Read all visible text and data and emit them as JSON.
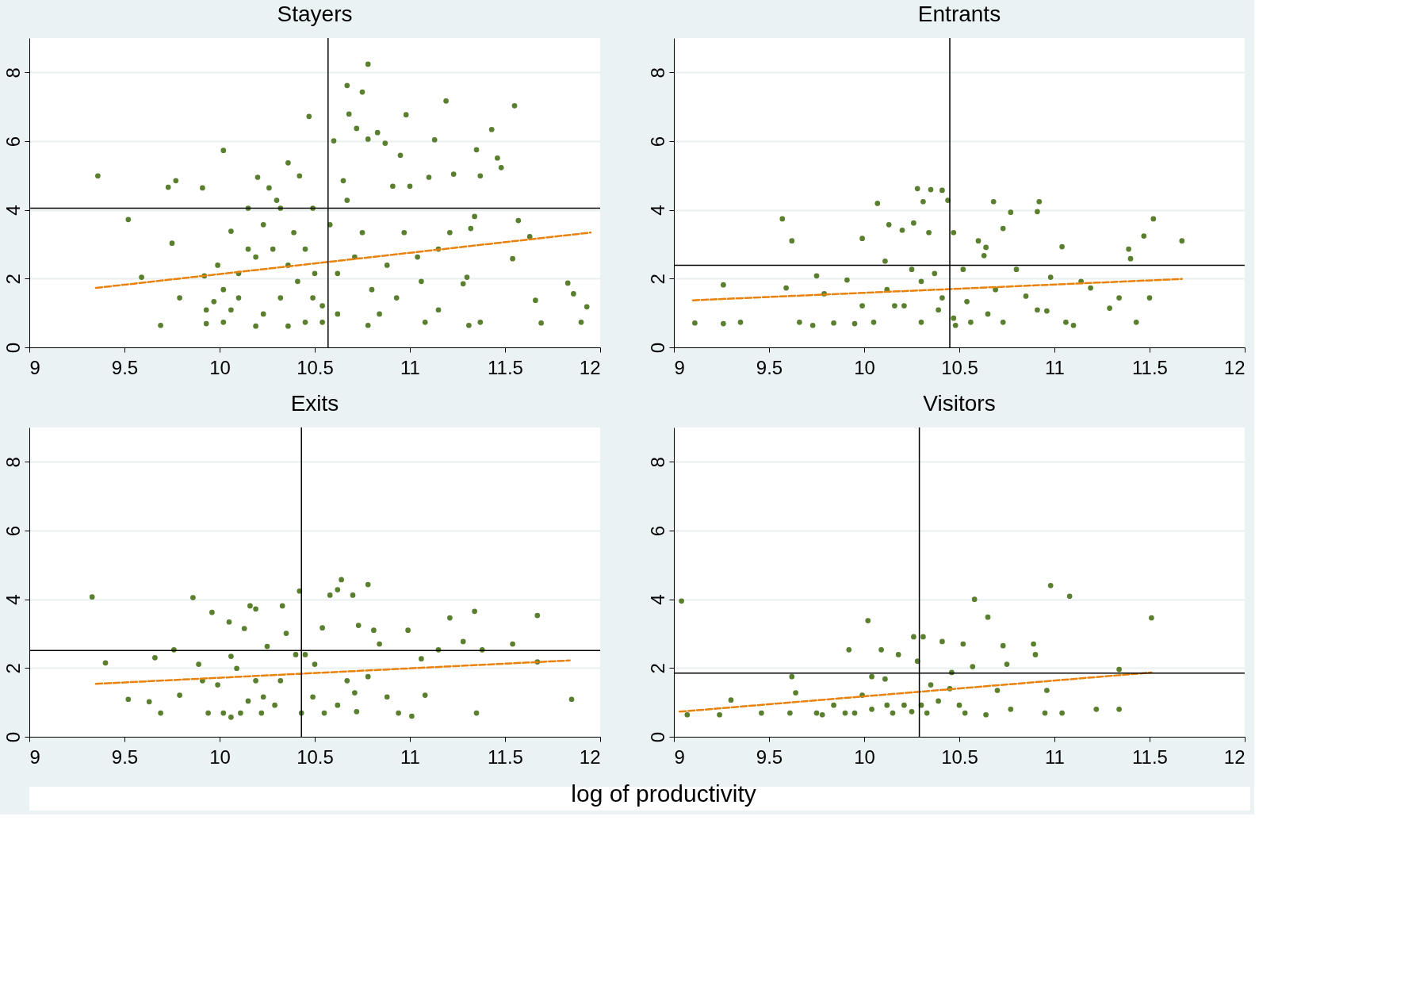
{
  "chart_data": [
    {
      "type": "scatter",
      "title": "Stayers",
      "xlim": [
        9,
        12
      ],
      "ylim": [
        0,
        9
      ],
      "xticks": [
        9,
        9.5,
        10,
        10.5,
        11,
        11.5,
        12
      ],
      "yticks": [
        0,
        2,
        4,
        6,
        8
      ],
      "grid": "y",
      "series": [
        {
          "marker": "circle",
          "color": "#5a7f2e",
          "x": [
            9.36,
            9.52,
            9.59,
            9.69,
            9.73,
            9.77,
            9.75,
            9.79,
            9.91,
            10.02,
            9.92,
            9.93,
            9.99,
            10.02,
            10.06,
            10.1,
            10.15,
            10.2,
            10.23,
            10.26,
            10.3,
            10.36,
            10.39,
            10.42,
            10.47,
            10.45,
            10.49,
            10.5,
            10.54,
            10.58,
            10.6,
            10.65,
            10.67,
            10.68,
            10.72,
            10.75,
            10.78,
            10.78,
            10.83,
            10.87,
            10.78,
            10.91,
            10.95,
            10.98,
            11.0,
            11.04,
            11.1,
            11.13,
            11.19,
            11.23,
            11.28,
            11.3,
            11.31,
            11.34,
            11.35,
            11.37,
            11.43,
            11.46,
            11.48,
            11.55,
            11.54,
            11.57,
            11.63,
            11.66,
            11.69,
            11.83,
            11.86,
            11.9,
            11.93,
            11.37,
            11.15,
            11.08,
            10.02,
            10.1,
            10.19,
            10.28,
            10.36,
            10.45,
            10.32,
            10.41,
            10.49,
            10.62,
            10.71,
            10.8,
            10.88,
            10.97,
            10.75,
            10.62,
            10.36,
            10.19,
            10.06,
            10.23,
            10.15,
            10.54,
            10.84,
            10.93,
            11.06,
            11.15,
            11.21,
            11.32,
            10.32,
            10.67,
            9.97,
            9.93
          ],
          "values": [
            4.99,
            3.72,
            2.04,
            0.64,
            4.66,
            4.85,
            3.03,
            1.44,
            4.64,
            5.73,
            2.08,
            0.69,
            2.39,
            0.73,
            3.38,
            1.44,
            2.86,
            4.95,
            0.97,
            4.64,
            4.28,
            5.37,
            3.34,
            4.99,
            6.72,
            0.73,
            4.05,
            2.15,
            1.21,
            3.57,
            6.01,
            4.85,
            7.62,
            6.79,
            6.37,
            7.43,
            8.24,
            6.06,
            6.25,
            5.94,
            0.64,
            4.69,
            5.59,
            6.77,
            4.69,
            2.63,
            4.95,
            6.04,
            7.17,
            5.04,
            1.85,
            2.04,
            0.64,
            3.81,
            5.75,
            4.99,
            6.34,
            5.51,
            5.23,
            7.03,
            2.58,
            3.69,
            3.22,
            1.37,
            0.71,
            1.87,
            1.56,
            0.73,
            1.18,
            0.73,
            1.09,
            0.73,
            1.68,
            2.15,
            2.63,
            2.86,
            2.39,
            2.86,
            1.44,
            1.92,
            1.44,
            2.15,
            2.63,
            1.68,
            2.39,
            3.34,
            3.34,
            0.97,
            0.62,
            0.62,
            1.09,
            3.57,
            4.05,
            0.73,
            0.97,
            1.44,
            1.92,
            2.86,
            3.34,
            3.46,
            4.05,
            4.28,
            1.33,
            1.09
          ]
        },
        {
          "type": "line",
          "color": "#e8820c",
          "line_style": "dashed",
          "x": [
            9.35,
            11.95
          ],
          "values": [
            1.73,
            3.34
          ]
        }
      ],
      "ref_lines": [
        {
          "axis": "y",
          "value": 4.05,
          "color": "#000000"
        },
        {
          "axis": "x",
          "value": 10.57,
          "color": "#000000"
        }
      ]
    },
    {
      "type": "scatter",
      "title": "Entrants",
      "xlim": [
        9,
        12
      ],
      "ylim": [
        0,
        9
      ],
      "xticks": [
        9,
        9.5,
        10,
        10.5,
        11,
        11.5,
        12
      ],
      "yticks": [
        0,
        2,
        4,
        6,
        8
      ],
      "grid": "y",
      "series": [
        {
          "marker": "circle",
          "color": "#5a7f2e",
          "x": [
            9.11,
            9.26,
            9.26,
            9.35,
            9.57,
            9.62,
            9.59,
            9.66,
            9.73,
            9.75,
            9.79,
            9.84,
            9.91,
            9.95,
            9.99,
            9.99,
            10.05,
            10.07,
            10.11,
            10.13,
            10.16,
            10.2,
            10.25,
            10.26,
            10.28,
            10.3,
            10.31,
            10.34,
            10.35,
            10.37,
            10.41,
            10.41,
            10.44,
            10.47,
            10.48,
            10.52,
            10.56,
            10.6,
            10.63,
            10.64,
            10.68,
            10.69,
            10.73,
            10.77,
            10.8,
            10.85,
            10.91,
            10.92,
            10.91,
            10.98,
            10.96,
            11.04,
            11.06,
            11.1,
            11.14,
            11.19,
            11.29,
            11.34,
            11.39,
            11.4,
            11.43,
            11.47,
            11.52,
            11.5,
            11.67,
            10.12,
            10.21,
            10.3,
            10.39,
            10.47,
            10.54,
            10.65,
            10.73
          ],
          "values": [
            0.71,
            1.82,
            0.69,
            0.73,
            3.74,
            3.1,
            1.73,
            0.73,
            0.64,
            2.08,
            1.56,
            0.71,
            1.96,
            0.69,
            3.17,
            1.21,
            0.73,
            4.19,
            2.51,
            3.57,
            1.21,
            3.41,
            2.27,
            3.62,
            4.62,
            0.73,
            4.24,
            3.34,
            4.59,
            2.15,
            4.57,
            1.44,
            4.28,
            3.34,
            0.64,
            2.27,
            0.73,
            3.1,
            2.67,
            2.91,
            4.24,
            1.68,
            3.46,
            3.93,
            2.27,
            1.49,
            3.95,
            4.24,
            1.09,
            2.04,
            1.06,
            2.93,
            0.73,
            0.64,
            1.92,
            1.73,
            1.14,
            1.44,
            2.86,
            2.58,
            0.73,
            3.24,
            3.74,
            1.44,
            3.1,
            1.68,
            1.21,
            1.92,
            1.09,
            0.85,
            1.33,
            0.97,
            0.73
          ]
        },
        {
          "type": "line",
          "color": "#e8820c",
          "line_style": "dashed",
          "x": [
            9.1,
            11.67
          ],
          "values": [
            1.37,
            1.99
          ]
        }
      ],
      "ref_lines": [
        {
          "axis": "y",
          "value": 2.39,
          "color": "#000000"
        },
        {
          "axis": "x",
          "value": 10.45,
          "color": "#000000"
        }
      ]
    },
    {
      "type": "scatter",
      "title": "Exits",
      "xlabel": "log of productivity",
      "xlim": [
        9,
        12
      ],
      "ylim": [
        0,
        9
      ],
      "xticks": [
        9,
        9.5,
        10,
        10.5,
        11,
        11.5,
        12
      ],
      "yticks": [
        0,
        2,
        4,
        6,
        8
      ],
      "grid": "y",
      "series": [
        {
          "marker": "circle",
          "color": "#5a7f2e",
          "x": [
            9.33,
            9.4,
            9.52,
            9.63,
            9.66,
            9.69,
            9.76,
            9.79,
            9.86,
            9.89,
            9.91,
            9.94,
            9.96,
            9.99,
            10.02,
            10.05,
            10.06,
            10.09,
            10.11,
            10.13,
            10.16,
            10.19,
            10.19,
            10.22,
            10.25,
            10.29,
            10.33,
            10.35,
            10.4,
            10.42,
            10.43,
            10.45,
            10.5,
            10.54,
            10.55,
            10.58,
            10.62,
            10.64,
            10.67,
            10.7,
            10.72,
            10.73,
            10.78,
            10.78,
            10.81,
            10.84,
            10.88,
            10.94,
            10.99,
            11.01,
            11.06,
            11.08,
            11.15,
            11.21,
            11.28,
            11.34,
            11.35,
            11.38,
            11.54,
            11.67,
            11.85,
            11.67,
            10.23,
            10.32,
            10.49,
            10.62,
            10.71,
            10.15,
            10.06
          ],
          "values": [
            4.07,
            2.15,
            1.09,
            1.02,
            2.3,
            0.69,
            2.53,
            1.21,
            4.05,
            2.11,
            1.63,
            0.69,
            3.62,
            1.51,
            0.69,
            3.34,
            2.34,
            1.99,
            0.69,
            3.15,
            3.81,
            3.72,
            1.63,
            0.69,
            2.63,
            0.92,
            3.81,
            3.01,
            2.39,
            4.24,
            0.69,
            2.39,
            2.11,
            3.17,
            0.69,
            4.12,
            4.28,
            4.57,
            1.63,
            4.12,
            0.73,
            3.24,
            1.75,
            4.43,
            3.1,
            2.7,
            1.16,
            0.69,
            3.1,
            0.6,
            2.27,
            1.21,
            2.53,
            3.46,
            2.77,
            3.65,
            0.69,
            2.53,
            2.7,
            3.53,
            1.09,
            2.18,
            1.16,
            1.63,
            1.16,
            0.92,
            1.28,
            1.04,
            0.57
          ]
        },
        {
          "type": "line",
          "color": "#e8820c",
          "line_style": "dashed",
          "x": [
            9.35,
            11.84
          ],
          "values": [
            1.54,
            2.22
          ]
        }
      ],
      "ref_lines": [
        {
          "axis": "y",
          "value": 2.51,
          "color": "#000000"
        },
        {
          "axis": "x",
          "value": 10.43,
          "color": "#000000"
        }
      ]
    },
    {
      "type": "scatter",
      "title": "Visitors",
      "xlim": [
        9,
        12
      ],
      "ylim": [
        0,
        9
      ],
      "xticks": [
        9,
        9.5,
        10,
        10.5,
        11,
        11.5,
        12
      ],
      "yticks": [
        0,
        2,
        4,
        6,
        8
      ],
      "grid": "y",
      "series": [
        {
          "marker": "circle",
          "color": "#5a7f2e",
          "x": [
            9.04,
            9.07,
            9.24,
            9.3,
            9.46,
            9.61,
            9.62,
            9.64,
            9.75,
            9.78,
            9.84,
            9.9,
            9.92,
            9.95,
            9.99,
            10.02,
            10.04,
            10.09,
            10.11,
            10.15,
            10.18,
            10.21,
            10.26,
            10.28,
            10.31,
            10.33,
            10.35,
            10.41,
            10.45,
            10.46,
            10.52,
            10.53,
            10.57,
            10.58,
            10.64,
            10.65,
            10.7,
            10.73,
            10.75,
            10.77,
            10.89,
            10.9,
            10.95,
            10.96,
            10.98,
            11.08,
            11.04,
            11.22,
            11.34,
            11.34,
            11.51,
            10.25,
            10.3,
            10.39,
            10.12,
            10.04,
            10.5
          ],
          "values": [
            3.95,
            0.64,
            0.64,
            1.07,
            0.69,
            0.69,
            1.75,
            1.28,
            0.69,
            0.64,
            0.92,
            0.69,
            2.53,
            0.69,
            1.21,
            3.38,
            1.75,
            2.53,
            1.68,
            0.69,
            2.39,
            0.92,
            2.91,
            2.2,
            2.91,
            0.69,
            1.51,
            2.77,
            1.4,
            1.87,
            2.7,
            0.69,
            2.04,
            4.0,
            0.64,
            3.48,
            1.35,
            2.65,
            2.11,
            0.8,
            2.7,
            2.39,
            0.69,
            1.35,
            4.4,
            4.09,
            0.69,
            0.8,
            1.96,
            0.8,
            3.46,
            0.73,
            0.92,
            1.04,
            0.92,
            0.8,
            0.92
          ]
        },
        {
          "type": "line",
          "color": "#e8820c",
          "line_style": "dashed",
          "x": [
            9.03,
            11.51
          ],
          "values": [
            0.73,
            1.87
          ]
        }
      ],
      "ref_lines": [
        {
          "axis": "y",
          "value": 1.85,
          "color": "#000000"
        },
        {
          "axis": "x",
          "value": 10.29,
          "color": "#000000"
        }
      ]
    }
  ]
}
